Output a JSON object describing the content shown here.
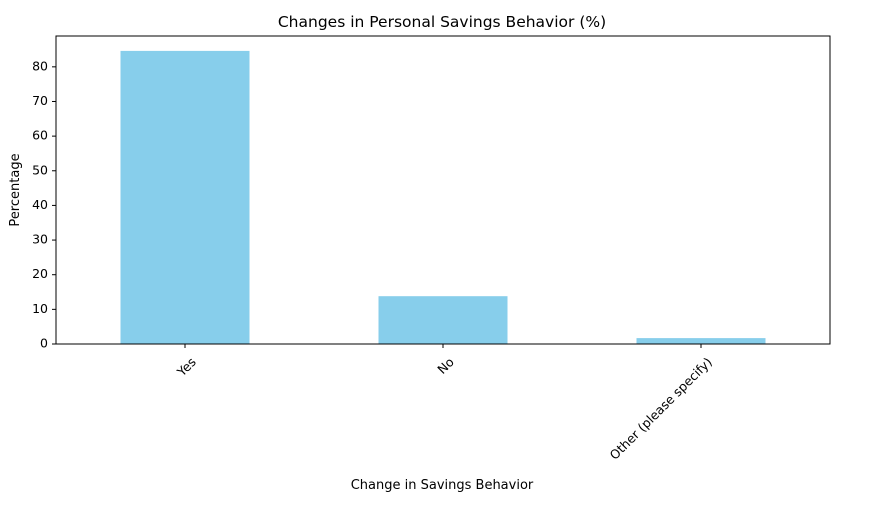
{
  "chart_data": {
    "type": "bar",
    "title": "Changes in Personal Savings Behavior (%)",
    "xlabel": "Change in Savings Behavior",
    "ylabel": "Percentage",
    "categories": [
      "Yes",
      "No",
      "Other (please specify)"
    ],
    "values": [
      84.6,
      13.8,
      1.7
    ],
    "ylim": [
      0,
      88.9
    ],
    "yticks": [
      "0",
      "10",
      "20",
      "30",
      "40",
      "50",
      "60",
      "70",
      "80"
    ],
    "bar_color": "#87CEEB",
    "grid": false,
    "legend": "none"
  }
}
